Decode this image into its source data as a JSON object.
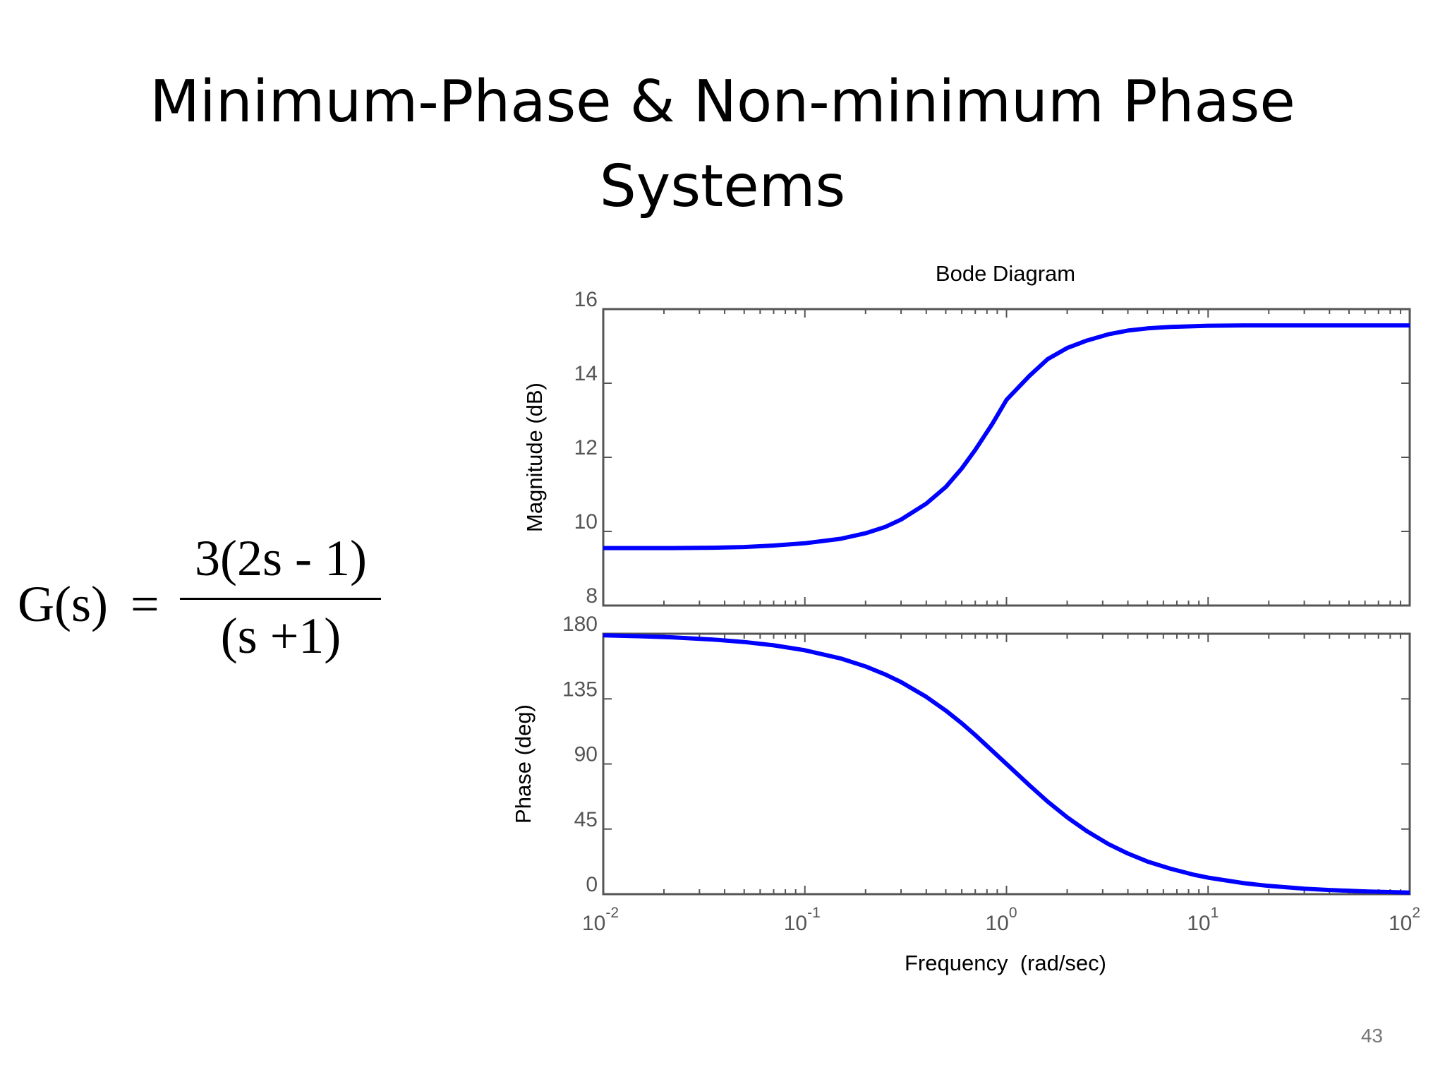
{
  "slide": {
    "title_line1": "Minimum-Phase & Non-minimum Phase",
    "title_line2": "Systems",
    "page_number": "43"
  },
  "formula": {
    "lhs": "G(s)",
    "equals": "=",
    "numerator": "3(2s - 1)",
    "denominator": "(s +1)"
  },
  "chart_data": {
    "type": "line",
    "title": "Bode Diagram",
    "xlabel": "Frequency  (rad/sec)",
    "x_scale": "log",
    "xlim": [
      0.01,
      100
    ],
    "x_ticks": [
      {
        "base": "10",
        "exp": "-2"
      },
      {
        "base": "10",
        "exp": "-1"
      },
      {
        "base": "10",
        "exp": "0"
      },
      {
        "base": "10",
        "exp": "1"
      },
      {
        "base": "10",
        "exp": "2"
      }
    ],
    "x": [
      0.01,
      0.015,
      0.022,
      0.035,
      0.05,
      0.07,
      0.1,
      0.15,
      0.2,
      0.25,
      0.3,
      0.4,
      0.5,
      0.6,
      0.7,
      0.85,
      1.0,
      1.3,
      1.6,
      2.0,
      2.5,
      3.2,
      4.0,
      5.0,
      6.5,
      8.5,
      10,
      15,
      20,
      30,
      40,
      60,
      100
    ],
    "line_color": "#0000ff",
    "grid": false,
    "panels": [
      {
        "ylabel": "Magnitude (dB)",
        "ylim": [
          8,
          16
        ],
        "y_ticks": [
          "16",
          "14",
          "12",
          "10",
          "8"
        ],
        "y": [
          9.55,
          9.55,
          9.55,
          9.56,
          9.58,
          9.62,
          9.68,
          9.8,
          9.95,
          10.12,
          10.32,
          10.75,
          11.2,
          11.7,
          12.2,
          12.9,
          13.55,
          14.2,
          14.65,
          14.95,
          15.15,
          15.32,
          15.42,
          15.48,
          15.52,
          15.54,
          15.55,
          15.56,
          15.56,
          15.56,
          15.56,
          15.56,
          15.56
        ]
      },
      {
        "ylabel": "Phase (deg)",
        "ylim": [
          0,
          180
        ],
        "y_ticks": [
          "180",
          "135",
          "90",
          "45",
          "0"
        ],
        "y": [
          178.9,
          178.3,
          177.5,
          176.0,
          174.3,
          172.0,
          168.6,
          163.0,
          157.4,
          151.9,
          146.6,
          136.4,
          126.9,
          118.1,
          110.0,
          99.1,
          90.0,
          75.2,
          64.0,
          53.1,
          43.6,
          34.7,
          28.1,
          22.6,
          17.6,
          13.4,
          11.4,
          7.6,
          5.7,
          3.8,
          2.9,
          1.9,
          1.1
        ]
      }
    ]
  }
}
